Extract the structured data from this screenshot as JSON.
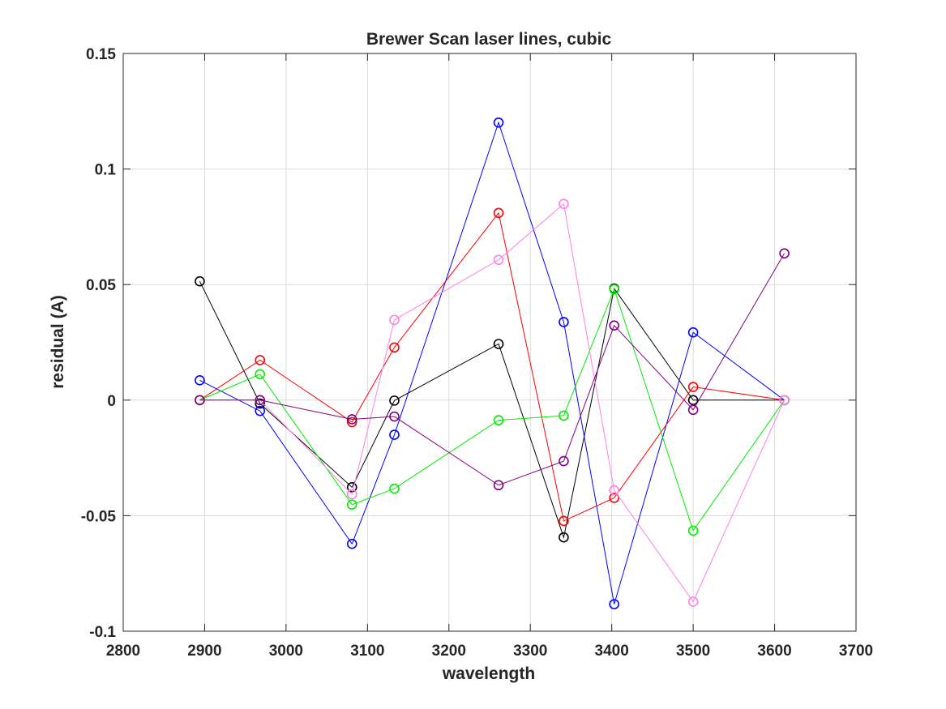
{
  "chart_data": {
    "type": "line",
    "title": "Brewer Scan laser lines, cubic",
    "xlabel": "wavelength",
    "ylabel": "residual (A)",
    "xlim": [
      2800,
      3700
    ],
    "ylim": [
      -0.1,
      0.15
    ],
    "x_ticks": [
      2800,
      2900,
      3000,
      3100,
      3200,
      3300,
      3400,
      3500,
      3600,
      3700
    ],
    "x_tick_labels": [
      "2800",
      "2900",
      "3000",
      "3100",
      "3200",
      "3300",
      "3400",
      "3500",
      "3600",
      "3700"
    ],
    "y_ticks": [
      -0.1,
      -0.05,
      0,
      0.05,
      0.1,
      0.15
    ],
    "y_tick_labels": [
      "-0.1",
      "-0.05",
      "0",
      "0.05",
      "0.1",
      "0.15"
    ],
    "grid": true,
    "marker": "circle",
    "series": [
      {
        "color": "#000000",
        "points": [
          [
            2894,
            0.0514
          ],
          [
            2968,
            -0.0015
          ],
          [
            3081,
            -0.0377
          ],
          [
            3133,
            -0.0002
          ],
          [
            3261,
            0.0243
          ],
          [
            3341,
            -0.0594
          ],
          [
            3403,
            0.0483
          ],
          [
            3500,
            0.0
          ],
          [
            3612,
            0.0
          ]
        ]
      },
      {
        "color": "#0000ff",
        "points": [
          [
            2894,
            0.0086
          ],
          [
            2968,
            -0.0047
          ],
          [
            3081,
            -0.0622
          ],
          [
            3133,
            -0.015
          ],
          [
            3261,
            0.1201
          ],
          [
            3341,
            0.0338
          ],
          [
            3403,
            -0.0883
          ],
          [
            3500,
            0.0293
          ],
          [
            3612,
            0.0
          ]
        ]
      },
      {
        "color": "#ff0000",
        "points": [
          [
            2894,
            0.0
          ],
          [
            2968,
            0.0173
          ],
          [
            3081,
            -0.0095
          ],
          [
            3133,
            0.0228
          ],
          [
            3261,
            0.081
          ],
          [
            3341,
            -0.0523
          ],
          [
            3403,
            -0.0423
          ],
          [
            3500,
            0.0057
          ],
          [
            3612,
            0.0
          ]
        ]
      },
      {
        "color": "#00ee00",
        "points": [
          [
            2894,
            0.0
          ],
          [
            2968,
            0.0112
          ],
          [
            3081,
            -0.0452
          ],
          [
            3133,
            -0.0383
          ],
          [
            3261,
            -0.0087
          ],
          [
            3341,
            -0.0067
          ],
          [
            3403,
            0.048
          ],
          [
            3500,
            -0.0565
          ],
          [
            3612,
            0.0
          ]
        ]
      },
      {
        "color": "#ff80e6",
        "points": [
          [
            2894,
            0.0
          ],
          [
            2968,
            0.0
          ],
          [
            3081,
            -0.0407
          ],
          [
            3133,
            0.0347
          ],
          [
            3261,
            0.0607
          ],
          [
            3341,
            0.0849
          ],
          [
            3403,
            -0.039
          ],
          [
            3500,
            -0.0872
          ],
          [
            3612,
            0.0
          ]
        ]
      },
      {
        "color": "#800080",
        "points": [
          [
            2894,
            0.0
          ],
          [
            2968,
            0.0
          ],
          [
            3081,
            -0.0083
          ],
          [
            3133,
            -0.0071
          ],
          [
            3261,
            -0.0368
          ],
          [
            3341,
            -0.0264
          ],
          [
            3403,
            0.0323
          ],
          [
            3500,
            -0.0042
          ],
          [
            3612,
            0.0635
          ]
        ]
      }
    ]
  }
}
